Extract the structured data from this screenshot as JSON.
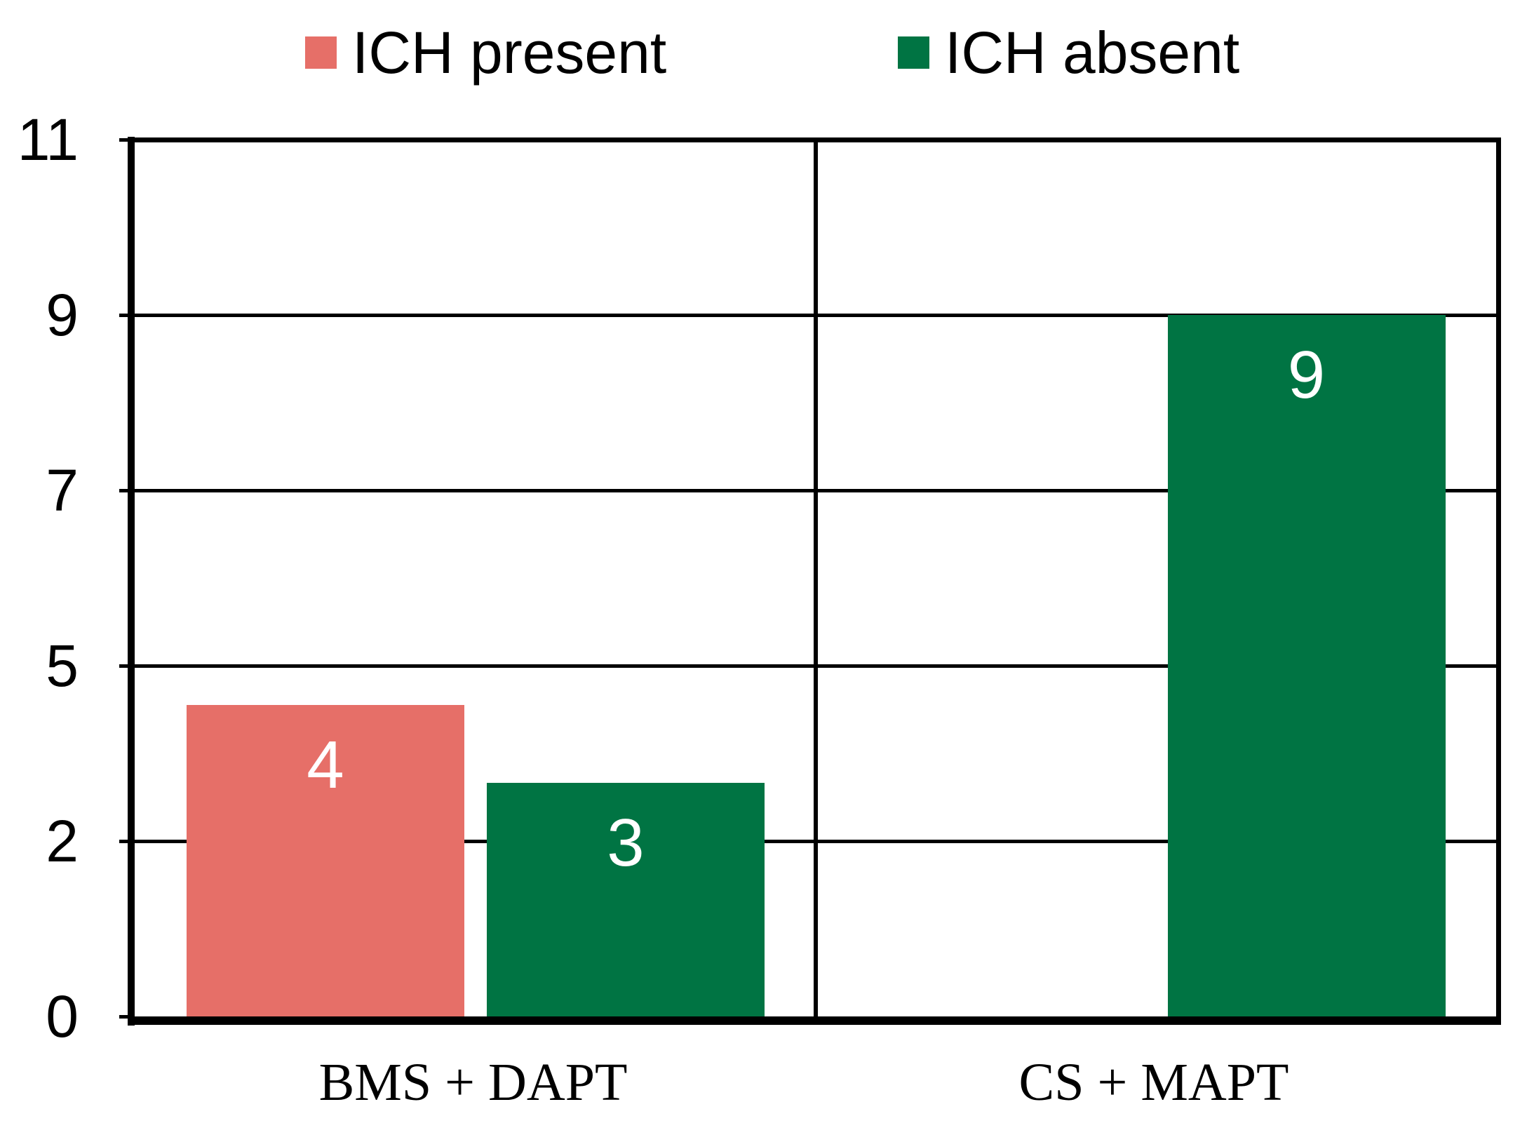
{
  "legend": {
    "items": [
      {
        "label": "ICH present",
        "color": "#E66F68"
      },
      {
        "label": "ICH absent",
        "color": "#007443"
      }
    ]
  },
  "chart_data": {
    "type": "bar",
    "title": "",
    "categories": [
      "BMS + DAPT",
      "CS + MAPT"
    ],
    "series": [
      {
        "name": "ICH present",
        "color": "#E66F68",
        "values": [
          4,
          0
        ]
      },
      {
        "name": "ICH absent",
        "color": "#007443",
        "values": [
          3,
          9
        ]
      }
    ],
    "bar_labels": {
      "color": "#FFFFFF",
      "position": "inside-top"
    },
    "y_axis": {
      "min": 0,
      "max": 11.25,
      "tick_labels": [
        "11",
        "9",
        "7",
        "5",
        "2",
        "0"
      ],
      "tick_values": [
        11.25,
        9,
        6.75,
        4.5,
        2.25,
        0
      ]
    },
    "grid": "horizontal",
    "legend_position": "top",
    "axis_color": "#000000",
    "background_color": "#FFFFFF"
  }
}
